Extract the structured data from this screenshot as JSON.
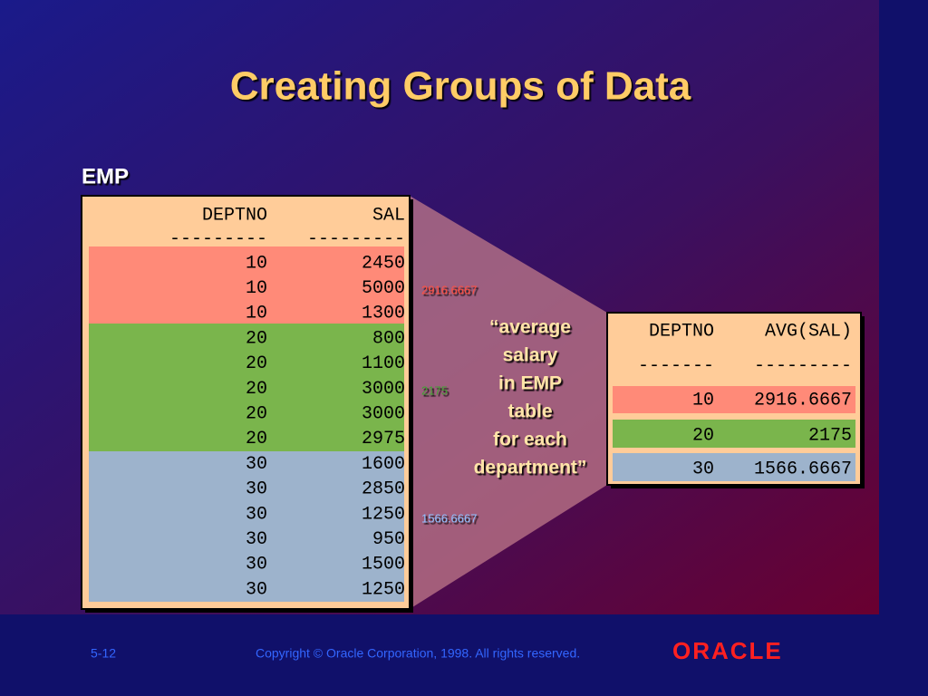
{
  "title": "Creating Groups of Data",
  "emp_table": {
    "name": "EMP",
    "header": [
      "DEPTNO",
      "SAL"
    ],
    "separator": [
      "---------",
      "---------"
    ],
    "rows": [
      [
        10,
        2450
      ],
      [
        10,
        5000
      ],
      [
        10,
        1300
      ],
      [
        20,
        800
      ],
      [
        20,
        1100
      ],
      [
        20,
        3000
      ],
      [
        20,
        3000
      ],
      [
        20,
        2975
      ],
      [
        30,
        1600
      ],
      [
        30,
        2850
      ],
      [
        30,
        1250
      ],
      [
        30,
        950
      ],
      [
        30,
        1500
      ],
      [
        30,
        1250
      ]
    ]
  },
  "group_averages": [
    2916.6667,
    2175,
    1566.6667
  ],
  "callout": [
    "“average",
    "salary",
    "in EMP",
    "table",
    "for each",
    "department”"
  ],
  "result_table": {
    "header": [
      "DEPTNO",
      "AVG(SAL)"
    ],
    "separator": [
      "-------",
      "---------"
    ],
    "rows": [
      [
        10,
        2916.6667
      ],
      [
        20,
        2175
      ],
      [
        30,
        1566.6667
      ]
    ]
  },
  "footer": {
    "page": "5-12",
    "copyright": "Copyright © Oracle Corporation, 1998. All rights reserved.",
    "logo": "ORACLE"
  }
}
